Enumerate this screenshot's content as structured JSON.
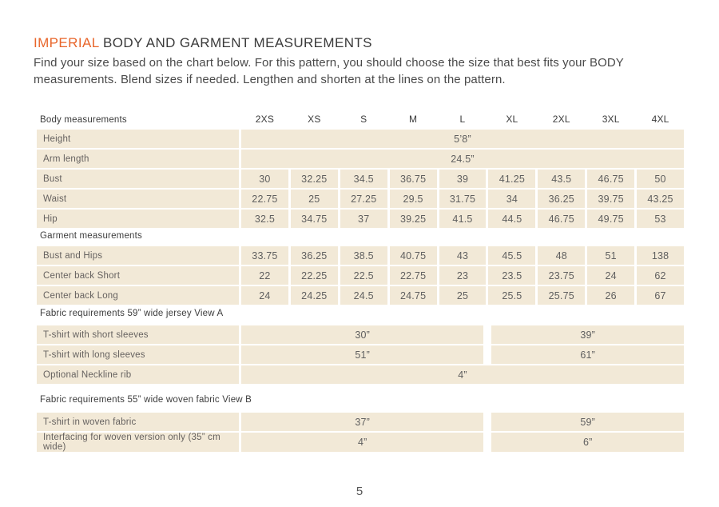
{
  "page": {
    "title_highlight": "IMPERIAL",
    "title_rest": " BODY AND GARMENT MEASUREMENTS",
    "intro": "Find your size based on the chart below. For this pattern, you should choose the size that best fits your BODY measurements. Blend sizes if needed. Lengthen and shorten at the lines on the pattern.",
    "page_number": "5"
  },
  "colors": {
    "accent": "#e8652a",
    "cell_bg": "#f2e9d7"
  },
  "table": {
    "header_label": "Body measurements",
    "sizes": [
      "2XS",
      "XS",
      "S",
      "M",
      "L",
      "XL",
      "2XL",
      "3XL",
      "4XL"
    ],
    "rows_full": [
      {
        "label": "Height",
        "value": "5’8”"
      },
      {
        "label": "Arm length",
        "value": "24.5”"
      }
    ],
    "rows_body": [
      {
        "label": "Bust",
        "values": [
          "30",
          "32.25",
          "34.5",
          "36.75",
          "39",
          "41.25",
          "43.5",
          "46.75",
          "50"
        ]
      },
      {
        "label": "Waist",
        "values": [
          "22.75",
          "25",
          "27.25",
          "29.5",
          "31.75",
          "34",
          "36.25",
          "39.75",
          "43.25"
        ]
      },
      {
        "label": "Hip",
        "values": [
          "32.5",
          "34.75",
          "37",
          "39.25",
          "41.5",
          "44.5",
          "46.75",
          "49.75",
          "53"
        ]
      }
    ],
    "section_garment": "Garment measurements",
    "rows_garment": [
      {
        "label": "Bust and Hips",
        "values": [
          "33.75",
          "36.25",
          "38.5",
          "40.75",
          "43",
          "45.5",
          "48",
          "51",
          "138"
        ]
      },
      {
        "label": "Center back Short",
        "values": [
          "22",
          "22.25",
          "22.5",
          "22.75",
          "23",
          "23.5",
          "23.75",
          "24",
          "62"
        ]
      },
      {
        "label": "Center back Long",
        "values": [
          "24",
          "24.25",
          "24.5",
          "24.75",
          "25",
          "25.5",
          "25.75",
          "26",
          "67"
        ]
      }
    ],
    "section_fabric_a": "Fabric requirements 59” wide jersey View A",
    "rows_fabric_a": [
      {
        "label": "T-shirt with short sleeves",
        "left": "30”",
        "right": "39”"
      },
      {
        "label": "T-shirt with long sleeves",
        "left": "51”",
        "right": "61”"
      },
      {
        "label": "Optional Neckline rib",
        "full": "4”"
      }
    ],
    "section_fabric_b": "Fabric requirements 55”  wide woven fabric View B",
    "rows_fabric_b": [
      {
        "label": "T-shirt in woven fabric",
        "left": "37”",
        "right": "59”"
      },
      {
        "label": "Interfacing for woven version only (35” cm wide)",
        "left": "4”",
        "right": "6”"
      }
    ]
  }
}
